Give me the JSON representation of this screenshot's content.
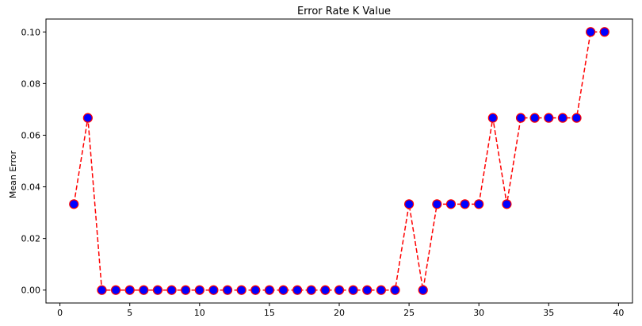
{
  "chart_data": {
    "type": "line",
    "title": "Error Rate K Value",
    "xlabel": "",
    "ylabel": "Mean Error",
    "xlim": [
      -1,
      41
    ],
    "ylim": [
      -0.005,
      0.105
    ],
    "xticks": [
      0,
      5,
      10,
      15,
      20,
      25,
      30,
      35,
      40
    ],
    "yticks": [
      0.0,
      0.02,
      0.04,
      0.06,
      0.08,
      0.1
    ],
    "ytick_labels": [
      "0.00",
      "0.02",
      "0.04",
      "0.06",
      "0.08",
      "0.10"
    ],
    "grid": false,
    "colors": {
      "line": "#ff0000",
      "marker_face": "#0000ff",
      "marker_edge": "#ff0000"
    },
    "line_style": "dashed",
    "marker": "circle",
    "series": [
      {
        "x": [
          1,
          2,
          3,
          4,
          5,
          6,
          7,
          8,
          9,
          10,
          11,
          12,
          13,
          14,
          15,
          16,
          17,
          18,
          19,
          20,
          21,
          22,
          23,
          24,
          25,
          26,
          27,
          28,
          29,
          30,
          31,
          32,
          33,
          34,
          35,
          36,
          37,
          38,
          39
        ],
        "values": [
          0.0333,
          0.0667,
          0,
          0,
          0,
          0,
          0,
          0,
          0,
          0,
          0,
          0,
          0,
          0,
          0,
          0,
          0,
          0,
          0,
          0,
          0,
          0,
          0,
          0,
          0.0333,
          0,
          0.0333,
          0.0333,
          0.0333,
          0.0333,
          0.0667,
          0.0333,
          0.0667,
          0.0667,
          0.0667,
          0.0667,
          0.0667,
          0.1,
          0.1
        ]
      }
    ]
  }
}
